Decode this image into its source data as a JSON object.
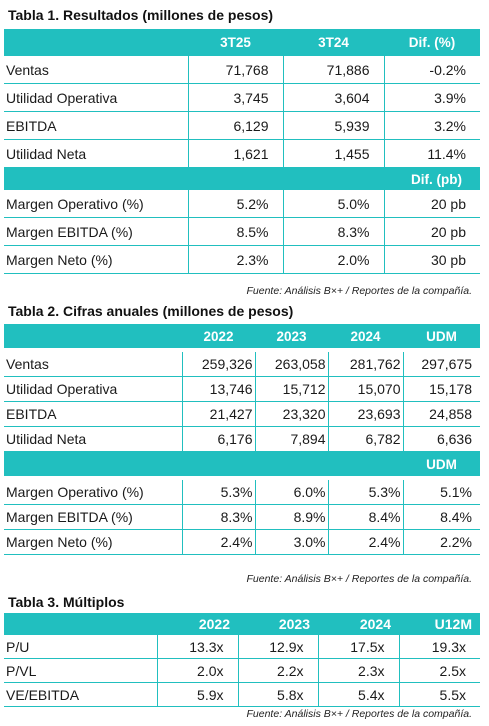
{
  "t1": {
    "title": "Tabla 1. Resultados (millones de pesos)",
    "headers": [
      "3T25",
      "3T24",
      "Dif. (%)"
    ],
    "rows": [
      {
        "label": "Ventas",
        "v": [
          "71,768",
          "71,886",
          "-0.2%"
        ]
      },
      {
        "label": "Utilidad Operativa",
        "v": [
          "3,745",
          "3,604",
          "3.9%"
        ]
      },
      {
        "label": "EBITDA",
        "v": [
          "6,129",
          "5,939",
          "3.2%"
        ]
      },
      {
        "label": "Utilidad Neta",
        "v": [
          "1,621",
          "1,455",
          "11.4%"
        ]
      }
    ],
    "subheader": "Dif. (pb)",
    "rows2": [
      {
        "label": "Margen Operativo (%)",
        "v": [
          "5.2%",
          "5.0%",
          "20 pb"
        ]
      },
      {
        "label": "Margen EBITDA (%)",
        "v": [
          "8.5%",
          "8.3%",
          "20 pb"
        ]
      },
      {
        "label": "Margen Neto (%)",
        "v": [
          "2.3%",
          "2.0%",
          "30 pb"
        ]
      }
    ],
    "source": "Fuente: Análisis B×+ / Reportes de la compañía."
  },
  "t2": {
    "title": "Tabla 2. Cifras anuales (millones de pesos)",
    "headers": [
      "2022",
      "2023",
      "2024",
      "UDM"
    ],
    "rows": [
      {
        "label": "Ventas",
        "v": [
          "259,326",
          "263,058",
          "281,762",
          "297,675"
        ]
      },
      {
        "label": "Utilidad Operativa",
        "v": [
          "13,746",
          "15,712",
          "15,070",
          "15,178"
        ]
      },
      {
        "label": "EBITDA",
        "v": [
          "21,427",
          "23,320",
          "23,693",
          "24,858"
        ]
      },
      {
        "label": "Utilidad Neta",
        "v": [
          "6,176",
          "7,894",
          "6,782",
          "6,636"
        ]
      }
    ],
    "subheader": "UDM",
    "rows2": [
      {
        "label": "Margen Operativo (%)",
        "v": [
          "5.3%",
          "6.0%",
          "5.3%",
          "5.1%"
        ]
      },
      {
        "label": "Margen EBITDA (%)",
        "v": [
          "8.3%",
          "8.9%",
          "8.4%",
          "8.4%"
        ]
      },
      {
        "label": "Margen Neto (%)",
        "v": [
          "2.4%",
          "3.0%",
          "2.4%",
          "2.2%"
        ]
      }
    ],
    "source": "Fuente: Análisis B×+ / Reportes de la compañía."
  },
  "t3": {
    "title": "Tabla 3. Múltiplos",
    "headers": [
      "2022",
      "2023",
      "2024",
      "U12M"
    ],
    "rows": [
      {
        "label": "P/U",
        "v": [
          "13.3x",
          "12.9x",
          "17.5x",
          "19.3x"
        ]
      },
      {
        "label": "P/VL",
        "v": [
          "2.0x",
          "2.2x",
          "2.3x",
          "2.5x"
        ]
      },
      {
        "label": "VE/EBITDA",
        "v": [
          "5.9x",
          "5.8x",
          "5.4x",
          "5.5x"
        ]
      }
    ],
    "source": "Fuente: Análisis B×+ / Reportes de la compañía."
  },
  "colors": {
    "accent": "#21bfbf"
  }
}
